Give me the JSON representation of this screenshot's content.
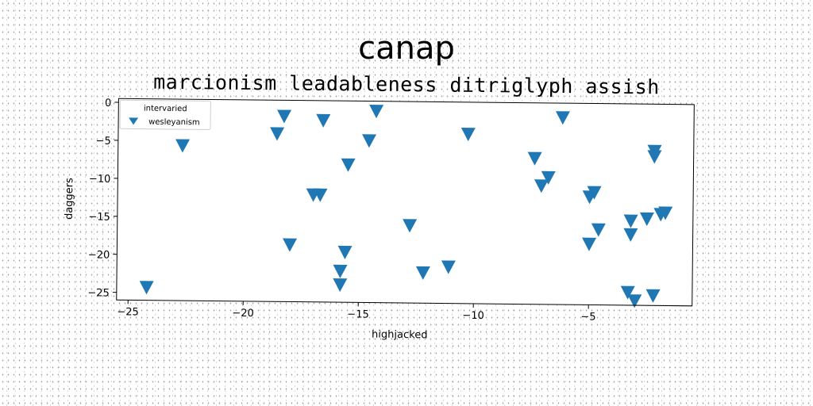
{
  "chart_data": {
    "type": "scatter",
    "title": "canap",
    "subtitle": "marcionism leadableness ditriglyph assish",
    "xlabel": "highjacked",
    "ylabel": "daggers",
    "xlim": [
      -25.5,
      -0.5
    ],
    "ylim": [
      -26,
      0.5
    ],
    "x_ticks": [
      -25,
      -20,
      -15,
      -10,
      -5
    ],
    "x_tick_labels": [
      "−25",
      "−20",
      "−15",
      "−10",
      "−5"
    ],
    "y_ticks": [
      0,
      -5,
      -10,
      -15,
      -20,
      -25
    ],
    "y_tick_labels": [
      "0",
      "−5",
      "−10",
      "−15",
      "−20",
      "−25"
    ],
    "grid": false,
    "legend": {
      "title": "intervaried",
      "placement": "top-left",
      "entries": [
        "wesleyanism"
      ]
    },
    "series": [
      {
        "name": "wesleyanism",
        "marker": "triangle-down",
        "color": "#1f77b4",
        "points": [
          [
            -24.2,
            -24.3
          ],
          [
            -22.7,
            -5.6
          ],
          [
            -18.6,
            -3.9
          ],
          [
            -18.3,
            -1.6
          ],
          [
            -18.0,
            -18.5
          ],
          [
            -17.0,
            -11.9
          ],
          [
            -16.7,
            -11.9
          ],
          [
            -16.6,
            -2.1
          ],
          [
            -15.8,
            -21.9
          ],
          [
            -15.8,
            -23.7
          ],
          [
            -15.6,
            -19.4
          ],
          [
            -15.5,
            -7.9
          ],
          [
            -14.6,
            -4.7
          ],
          [
            -14.3,
            -0.8
          ],
          [
            -12.8,
            -15.8
          ],
          [
            -12.2,
            -22.0
          ],
          [
            -11.1,
            -21.2
          ],
          [
            -10.3,
            -3.7
          ],
          [
            -7.4,
            -6.8
          ],
          [
            -7.1,
            -10.4
          ],
          [
            -6.8,
            -9.3
          ],
          [
            -6.2,
            -1.4
          ],
          [
            -5.0,
            -11.8
          ],
          [
            -5.0,
            -18.0
          ],
          [
            -4.8,
            -11.2
          ],
          [
            -4.6,
            -16.1
          ],
          [
            -3.3,
            -24.3
          ],
          [
            -3.2,
            -16.7
          ],
          [
            -3.2,
            -14.9
          ],
          [
            -3.0,
            -25.4
          ],
          [
            -2.5,
            -14.6
          ],
          [
            -2.2,
            -5.7
          ],
          [
            -2.2,
            -6.4
          ],
          [
            -2.2,
            -24.7
          ],
          [
            -1.9,
            -14.0
          ],
          [
            -1.7,
            -13.8
          ]
        ]
      }
    ]
  }
}
